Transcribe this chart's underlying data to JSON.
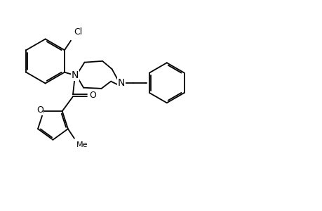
{
  "bg": "#ffffff",
  "lc": "#000000",
  "lw": 1.3,
  "fs": 9,
  "layout": {
    "xlim": [
      0,
      10
    ],
    "ylim": [
      0,
      10
    ]
  }
}
